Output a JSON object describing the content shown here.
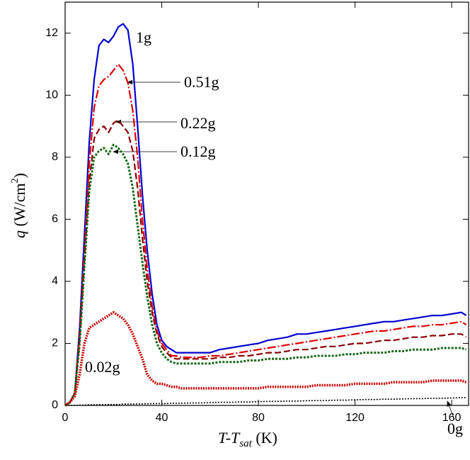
{
  "chart_data": {
    "type": "line",
    "x_label_parts": [
      "T-T",
      "sat",
      " (K)"
    ],
    "y_label_parts": [
      "q",
      " (W/cm",
      "2",
      ")"
    ],
    "xlim": [
      0,
      167
    ],
    "xticks": [
      0,
      40,
      80,
      120,
      160
    ],
    "ylim": [
      0,
      13
    ],
    "yticks": [
      0,
      2,
      4,
      6,
      8,
      10,
      12
    ],
    "x": [
      0,
      2,
      4,
      6,
      8,
      10,
      12,
      14,
      16,
      18,
      20,
      22,
      24,
      26,
      28,
      30,
      32,
      34,
      36,
      38,
      40,
      42,
      44,
      46,
      48,
      52,
      56,
      60,
      64,
      68,
      72,
      76,
      80,
      84,
      88,
      92,
      96,
      100,
      104,
      108,
      112,
      116,
      120,
      124,
      128,
      132,
      136,
      140,
      144,
      148,
      152,
      156,
      160,
      164,
      166
    ],
    "series": [
      {
        "name": "1g",
        "color": "#0000d0",
        "values": [
          0,
          0.1,
          0.4,
          2.5,
          5.5,
          8.5,
          10.5,
          11.6,
          11.8,
          11.7,
          11.9,
          12.2,
          12.3,
          12.1,
          11.0,
          9.0,
          6.8,
          5.0,
          3.6,
          2.6,
          2.1,
          1.9,
          1.8,
          1.7,
          1.7,
          1.7,
          1.7,
          1.7,
          1.8,
          1.85,
          1.9,
          1.95,
          2.0,
          2.1,
          2.15,
          2.2,
          2.3,
          2.3,
          2.35,
          2.4,
          2.45,
          2.5,
          2.55,
          2.6,
          2.65,
          2.7,
          2.7,
          2.75,
          2.8,
          2.85,
          2.9,
          2.9,
          2.95,
          3.0,
          2.9
        ]
      },
      {
        "name": "0.51g",
        "color": "#e00000",
        "values": [
          0,
          0.1,
          0.4,
          2.3,
          5.0,
          7.8,
          9.6,
          10.3,
          10.5,
          10.6,
          10.8,
          11.0,
          10.8,
          10.4,
          9.5,
          8.0,
          6.0,
          4.4,
          3.2,
          2.4,
          2.0,
          1.8,
          1.6,
          1.6,
          1.55,
          1.55,
          1.55,
          1.6,
          1.6,
          1.65,
          1.7,
          1.75,
          1.8,
          1.85,
          1.9,
          1.95,
          2.0,
          2.05,
          2.1,
          2.15,
          2.2,
          2.25,
          2.3,
          2.35,
          2.4,
          2.4,
          2.45,
          2.5,
          2.55,
          2.55,
          2.6,
          2.6,
          2.65,
          2.7,
          2.6
        ]
      },
      {
        "name": "0.22g",
        "color": "#8b0000",
        "values": [
          0,
          0.1,
          0.4,
          2.1,
          4.7,
          7.2,
          8.6,
          8.9,
          9.0,
          8.8,
          9.1,
          9.2,
          9.0,
          8.8,
          8.2,
          7.0,
          5.4,
          4.0,
          3.0,
          2.3,
          1.9,
          1.7,
          1.55,
          1.5,
          1.5,
          1.5,
          1.5,
          1.5,
          1.55,
          1.55,
          1.6,
          1.6,
          1.65,
          1.7,
          1.7,
          1.75,
          1.8,
          1.8,
          1.85,
          1.9,
          1.9,
          1.95,
          2.0,
          2.0,
          2.05,
          2.1,
          2.1,
          2.15,
          2.2,
          2.2,
          2.25,
          2.25,
          2.3,
          2.3,
          2.2
        ]
      },
      {
        "name": "0.12g",
        "color": "#156815",
        "values": [
          0,
          0.1,
          0.4,
          2.0,
          4.5,
          6.9,
          8.0,
          8.2,
          8.3,
          8.1,
          8.4,
          8.3,
          8.1,
          7.8,
          7.0,
          5.8,
          4.6,
          3.5,
          2.6,
          2.0,
          1.7,
          1.5,
          1.4,
          1.35,
          1.35,
          1.35,
          1.35,
          1.35,
          1.4,
          1.4,
          1.4,
          1.45,
          1.45,
          1.5,
          1.5,
          1.5,
          1.55,
          1.55,
          1.6,
          1.6,
          1.6,
          1.65,
          1.65,
          1.7,
          1.7,
          1.7,
          1.75,
          1.75,
          1.8,
          1.8,
          1.8,
          1.85,
          1.85,
          1.85,
          1.8
        ]
      },
      {
        "name": "0.02g",
        "color": "#cc0000",
        "values": [
          0,
          0.1,
          0.3,
          1.0,
          2.0,
          2.5,
          2.6,
          2.7,
          2.8,
          2.9,
          3.0,
          2.9,
          2.8,
          2.6,
          2.3,
          1.9,
          1.5,
          1.0,
          0.8,
          0.7,
          0.7,
          0.65,
          0.6,
          0.6,
          0.55,
          0.55,
          0.55,
          0.55,
          0.55,
          0.55,
          0.55,
          0.55,
          0.55,
          0.6,
          0.6,
          0.6,
          0.6,
          0.6,
          0.65,
          0.65,
          0.65,
          0.65,
          0.7,
          0.7,
          0.7,
          0.7,
          0.75,
          0.75,
          0.75,
          0.75,
          0.8,
          0.8,
          0.8,
          0.8,
          0.75
        ]
      },
      {
        "name": "0g",
        "color": "#000000",
        "values": [
          0,
          0,
          0,
          0.01,
          0.01,
          0.02,
          0.02,
          0.02,
          0.03,
          0.03,
          0.03,
          0.03,
          0.04,
          0.04,
          0.04,
          0.05,
          0.05,
          0.05,
          0.06,
          0.06,
          0.06,
          0.06,
          0.07,
          0.07,
          0.07,
          0.08,
          0.08,
          0.09,
          0.1,
          0.1,
          0.11,
          0.11,
          0.12,
          0.13,
          0.13,
          0.14,
          0.14,
          0.15,
          0.16,
          0.16,
          0.17,
          0.17,
          0.18,
          0.19,
          0.19,
          0.2,
          0.2,
          0.21,
          0.22,
          0.22,
          0.23,
          0.23,
          0.24,
          0.25,
          0.25
        ]
      }
    ]
  }
}
